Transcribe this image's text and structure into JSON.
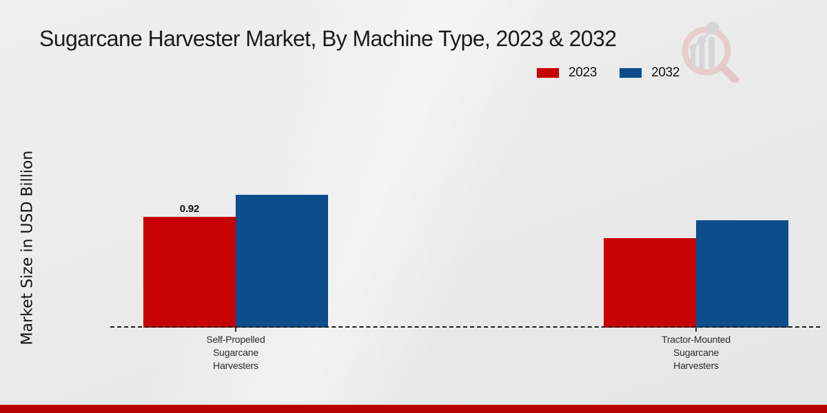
{
  "page": {
    "background_color": "#eaeaea",
    "footer_bar_color": "#b90303"
  },
  "header": {
    "title": "Sugarcane Harvester Market, By Machine Type, 2023 & 2032"
  },
  "legend": {
    "items": [
      {
        "label": "2023",
        "color": "#c70202"
      },
      {
        "label": "2032",
        "color": "#0d4d8c"
      }
    ]
  },
  "watermark": {
    "name": "market-research-magnifier-logo"
  },
  "chart_data": {
    "type": "bar",
    "title": "Sugarcane Harvester Market, By Machine Type, 2023 & 2032",
    "xlabel": "",
    "ylabel": "Market Size in USD Billion",
    "categories": [
      "Self-Propelled Sugarcane Harvesters",
      "Tractor-Mounted Sugarcane Harvesters"
    ],
    "category_lines": [
      [
        "Self-Propelled",
        "Sugarcane",
        "Harvesters"
      ],
      [
        "Tractor-Mounted",
        "Sugarcane",
        "Harvesters"
      ]
    ],
    "series": [
      {
        "name": "2023",
        "color": "#c70202",
        "values": [
          0.92,
          0.74
        ],
        "labels": [
          "0.92",
          ""
        ]
      },
      {
        "name": "2032",
        "color": "#0d4d8c",
        "values": [
          1.1,
          0.89
        ],
        "labels": [
          "",
          ""
        ]
      }
    ],
    "ylim": [
      0,
      1.25
    ],
    "grid": false,
    "baseline_style": "dashed",
    "legend_position": "top-right"
  }
}
